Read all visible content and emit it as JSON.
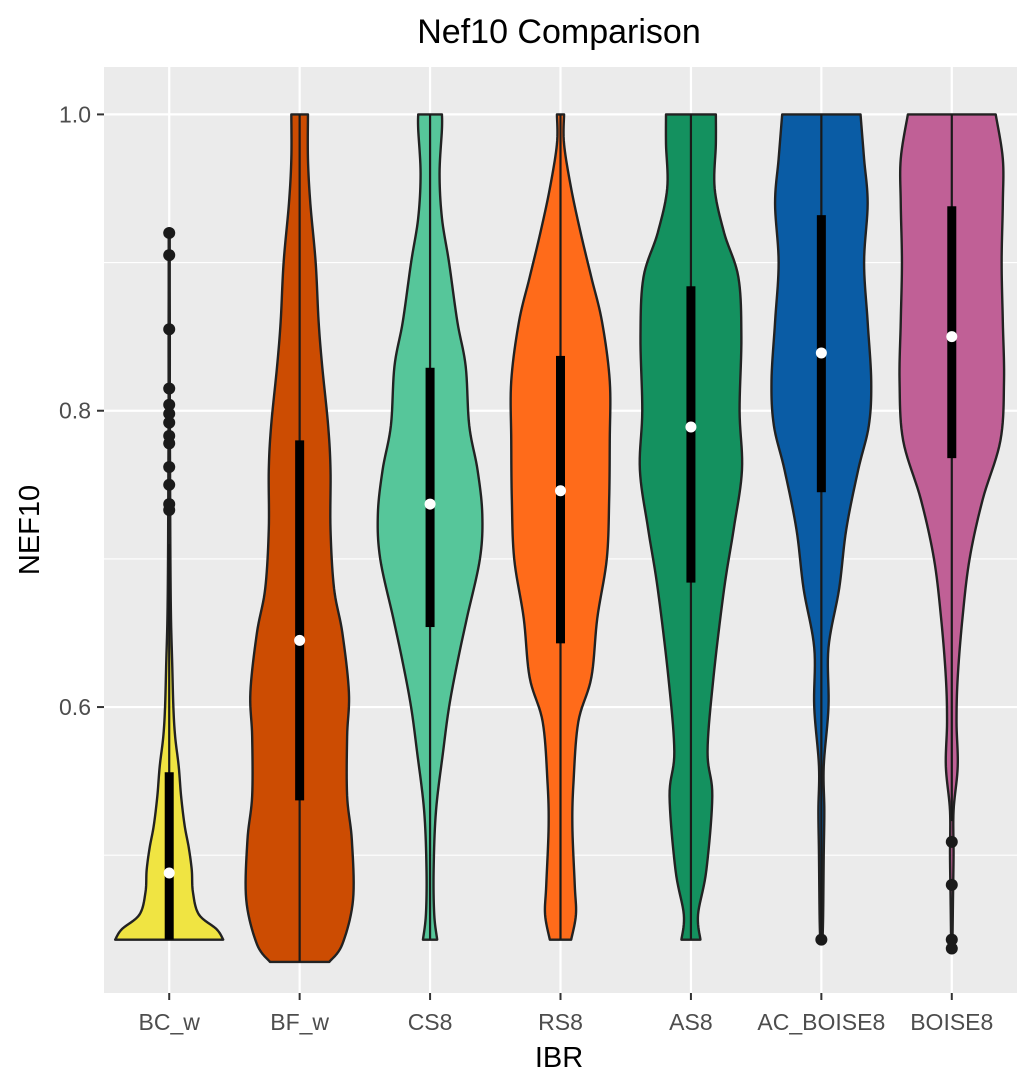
{
  "chart_data": {
    "type": "violin",
    "title": "Nef10 Comparison",
    "xlabel": "IBR",
    "ylabel": "NEF10",
    "ylim": [
      0.407,
      1.032
    ],
    "yticks": [
      {
        "value": 0.6,
        "label": "0.6"
      },
      {
        "value": 0.8,
        "label": "0.8"
      },
      {
        "value": 1.0,
        "label": "1.0"
      }
    ],
    "yminor": [
      0.5,
      0.7,
      0.9
    ],
    "grid": true,
    "groups": [
      {
        "name": "BC_w",
        "color": "#F0E442",
        "q1": 0.443,
        "median": 0.488,
        "q3": 0.556,
        "whisker_low": 0.443,
        "whisker_high": 0.71,
        "outliers": [
          0.733,
          0.737,
          0.75,
          0.762,
          0.778,
          0.783,
          0.792,
          0.798,
          0.804,
          0.815,
          0.855,
          0.905,
          0.92
        ],
        "density": [
          [
            0.443,
            0.91
          ],
          [
            0.45,
            0.8
          ],
          [
            0.46,
            0.5
          ],
          [
            0.475,
            0.4
          ],
          [
            0.49,
            0.38
          ],
          [
            0.505,
            0.33
          ],
          [
            0.52,
            0.26
          ],
          [
            0.54,
            0.2
          ],
          [
            0.56,
            0.16
          ],
          [
            0.58,
            0.1
          ],
          [
            0.6,
            0.07
          ],
          [
            0.63,
            0.05
          ],
          [
            0.66,
            0.03
          ],
          [
            0.7,
            0.02
          ],
          [
            0.75,
            0.015
          ],
          [
            0.8,
            0.01
          ],
          [
            0.85,
            0.01
          ],
          [
            0.9,
            0.007
          ],
          [
            0.92,
            0.003
          ]
        ]
      },
      {
        "name": "BF_w",
        "color": "#CC4C02",
        "q1": 0.537,
        "median": 0.645,
        "q3": 0.78,
        "whisker_low": 0.428,
        "whisker_high": 1.0,
        "outliers": [],
        "density": [
          [
            0.428,
            0.5
          ],
          [
            0.44,
            0.72
          ],
          [
            0.47,
            0.9
          ],
          [
            0.51,
            0.88
          ],
          [
            0.54,
            0.8
          ],
          [
            0.58,
            0.8
          ],
          [
            0.61,
            0.83
          ],
          [
            0.65,
            0.72
          ],
          [
            0.68,
            0.58
          ],
          [
            0.72,
            0.52
          ],
          [
            0.76,
            0.52
          ],
          [
            0.79,
            0.48
          ],
          [
            0.83,
            0.38
          ],
          [
            0.86,
            0.32
          ],
          [
            0.9,
            0.27
          ],
          [
            0.94,
            0.18
          ],
          [
            0.97,
            0.14
          ],
          [
            1.0,
            0.14
          ]
        ]
      },
      {
        "name": "CS8",
        "color": "#56C69A",
        "q1": 0.654,
        "median": 0.737,
        "q3": 0.829,
        "whisker_low": 0.443,
        "whisker_high": 1.0,
        "outliers": [],
        "density": [
          [
            0.443,
            0.12
          ],
          [
            0.46,
            0.07
          ],
          [
            0.49,
            0.06
          ],
          [
            0.53,
            0.1
          ],
          [
            0.57,
            0.22
          ],
          [
            0.6,
            0.32
          ],
          [
            0.63,
            0.46
          ],
          [
            0.66,
            0.62
          ],
          [
            0.7,
            0.84
          ],
          [
            0.73,
            0.88
          ],
          [
            0.76,
            0.8
          ],
          [
            0.79,
            0.66
          ],
          [
            0.83,
            0.6
          ],
          [
            0.86,
            0.46
          ],
          [
            0.9,
            0.32
          ],
          [
            0.93,
            0.2
          ],
          [
            0.96,
            0.16
          ],
          [
            0.99,
            0.2
          ],
          [
            1.0,
            0.2
          ]
        ]
      },
      {
        "name": "RS8",
        "color": "#FF6B1A",
        "q1": 0.643,
        "median": 0.746,
        "q3": 0.837,
        "whisker_low": 0.443,
        "whisker_high": 1.0,
        "outliers": [],
        "density": [
          [
            0.443,
            0.18
          ],
          [
            0.46,
            0.26
          ],
          [
            0.48,
            0.24
          ],
          [
            0.52,
            0.2
          ],
          [
            0.55,
            0.22
          ],
          [
            0.59,
            0.3
          ],
          [
            0.62,
            0.52
          ],
          [
            0.66,
            0.62
          ],
          [
            0.7,
            0.78
          ],
          [
            0.74,
            0.82
          ],
          [
            0.78,
            0.83
          ],
          [
            0.82,
            0.83
          ],
          [
            0.86,
            0.7
          ],
          [
            0.89,
            0.52
          ],
          [
            0.92,
            0.34
          ],
          [
            0.95,
            0.18
          ],
          [
            0.98,
            0.06
          ],
          [
            1.0,
            0.06
          ]
        ]
      },
      {
        "name": "AS8",
        "color": "#14915F",
        "q1": 0.684,
        "median": 0.789,
        "q3": 0.884,
        "whisker_low": 0.443,
        "whisker_high": 1.0,
        "outliers": [],
        "density": [
          [
            0.443,
            0.16
          ],
          [
            0.46,
            0.12
          ],
          [
            0.49,
            0.26
          ],
          [
            0.54,
            0.36
          ],
          [
            0.57,
            0.28
          ],
          [
            0.62,
            0.38
          ],
          [
            0.68,
            0.56
          ],
          [
            0.72,
            0.72
          ],
          [
            0.76,
            0.86
          ],
          [
            0.8,
            0.82
          ],
          [
            0.85,
            0.85
          ],
          [
            0.89,
            0.8
          ],
          [
            0.92,
            0.56
          ],
          [
            0.95,
            0.4
          ],
          [
            0.98,
            0.42
          ],
          [
            1.0,
            0.42
          ]
        ]
      },
      {
        "name": "AC_BOISE8",
        "color": "#0A5CA5",
        "q1": 0.745,
        "median": 0.839,
        "q3": 0.932,
        "whisker_low": 0.443,
        "whisker_high": 1.0,
        "outliers": [
          0.443
        ],
        "density": [
          [
            0.443,
            0.02
          ],
          [
            0.46,
            0.03
          ],
          [
            0.5,
            0.04
          ],
          [
            0.53,
            0.05
          ],
          [
            0.56,
            0.04
          ],
          [
            0.6,
            0.12
          ],
          [
            0.64,
            0.12
          ],
          [
            0.68,
            0.3
          ],
          [
            0.72,
            0.42
          ],
          [
            0.76,
            0.62
          ],
          [
            0.79,
            0.8
          ],
          [
            0.82,
            0.84
          ],
          [
            0.86,
            0.78
          ],
          [
            0.9,
            0.72
          ],
          [
            0.94,
            0.78
          ],
          [
            0.97,
            0.72
          ],
          [
            1.0,
            0.66
          ]
        ]
      },
      {
        "name": "BOISE8",
        "color": "#C06096",
        "q1": 0.768,
        "median": 0.85,
        "q3": 0.938,
        "whisker_low": 0.523,
        "whisker_high": 1.0,
        "outliers": [
          0.437,
          0.443,
          0.48,
          0.509
        ],
        "density": [
          [
            0.437,
            0.01
          ],
          [
            0.47,
            0.02
          ],
          [
            0.5,
            0.03
          ],
          [
            0.53,
            0.03
          ],
          [
            0.56,
            0.1
          ],
          [
            0.59,
            0.08
          ],
          [
            0.62,
            0.1
          ],
          [
            0.66,
            0.18
          ],
          [
            0.7,
            0.3
          ],
          [
            0.74,
            0.52
          ],
          [
            0.78,
            0.82
          ],
          [
            0.82,
            0.88
          ],
          [
            0.86,
            0.86
          ],
          [
            0.9,
            0.84
          ],
          [
            0.94,
            0.86
          ],
          [
            0.97,
            0.86
          ],
          [
            1.0,
            0.74
          ]
        ]
      }
    ]
  }
}
